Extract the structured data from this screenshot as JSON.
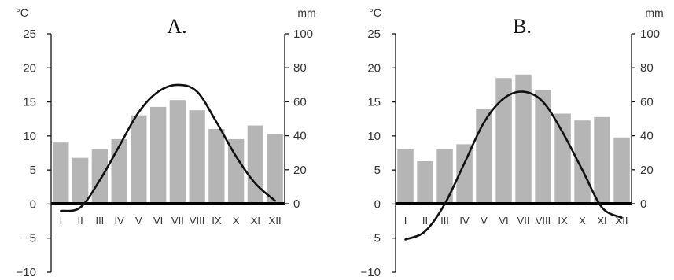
{
  "chart_data": [
    {
      "type": "bar",
      "title": "A.",
      "left_axis_unit": "°C",
      "right_axis_unit": "mm",
      "categories": [
        "I",
        "II",
        "III",
        "IV",
        "V",
        "VI",
        "VII",
        "VIII",
        "IX",
        "X",
        "XI",
        "XII"
      ],
      "temp_ylim": [
        -10,
        25
      ],
      "temp_ticks": [
        "25",
        "20",
        "15",
        "10",
        "5",
        "0",
        "-5",
        "-10"
      ],
      "precip_ylim": [
        0,
        100
      ],
      "precip_ticks": [
        "100",
        "80",
        "60",
        "40",
        "20",
        "0"
      ],
      "series": [
        {
          "kind": "bar",
          "axis": "right",
          "values": [
            36,
            27,
            32,
            38,
            52,
            57,
            61,
            55,
            44,
            38,
            46,
            41
          ]
        },
        {
          "kind": "line",
          "axis": "left",
          "values": [
            -1,
            -0.5,
            3.5,
            8.5,
            13.5,
            16.5,
            17.5,
            16.5,
            12,
            7,
            3,
            0.5
          ]
        }
      ]
    },
    {
      "type": "bar",
      "title": "B.",
      "left_axis_unit": "°C",
      "right_axis_unit": "mm",
      "categories": [
        "I",
        "II",
        "III",
        "IV",
        "V",
        "VI",
        "VII",
        "VIII",
        "IX",
        "X",
        "XI",
        "XII"
      ],
      "temp_ylim": [
        -10,
        25
      ],
      "temp_ticks": [
        "25",
        "20",
        "15",
        "10",
        "5",
        "0",
        "-5",
        "-10"
      ],
      "precip_ylim": [
        0,
        100
      ],
      "precip_ticks": [
        "100",
        "80",
        "60",
        "40",
        "20",
        "0"
      ],
      "series": [
        {
          "kind": "bar",
          "axis": "right",
          "values": [
            32,
            25,
            32,
            35,
            56,
            74,
            76,
            67,
            53,
            49,
            51,
            39
          ]
        },
        {
          "kind": "line",
          "axis": "left",
          "values": [
            -5.2,
            -4,
            0,
            6,
            12,
            15.5,
            16.5,
            15,
            10.5,
            5,
            -0.5,
            -2
          ]
        }
      ]
    }
  ]
}
